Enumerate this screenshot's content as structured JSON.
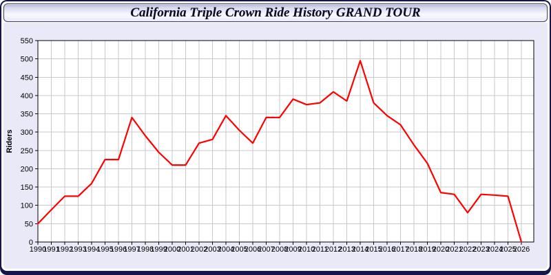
{
  "window": {
    "title": "California Triple Crown Ride History GRAND TOUR"
  },
  "colors": {
    "line": "#ff0000",
    "grid": "#c9c9c9",
    "axis": "#000000",
    "plot_background": "#ffffff",
    "panel_background": "#e9e9f8",
    "label_text": "#000000"
  },
  "chart_data": {
    "type": "line",
    "title": "California Triple Crown Ride History GRAND TOUR",
    "xlabel": "",
    "ylabel": "Riders",
    "x": [
      1990,
      1991,
      1992,
      1993,
      1994,
      1995,
      1996,
      1997,
      1998,
      1999,
      2000,
      2001,
      2002,
      2003,
      2004,
      2005,
      2006,
      2007,
      2008,
      2009,
      2010,
      2011,
      2012,
      2013,
      2014,
      2015,
      2016,
      2017,
      2018,
      2019,
      2020,
      2021,
      2022,
      2023,
      2024,
      2025,
      2026
    ],
    "series": [
      {
        "name": "Riders",
        "color": "#ff0000",
        "values": [
          50,
          88,
          125,
          125,
          160,
          225,
          225,
          340,
          290,
          245,
          210,
          210,
          270,
          280,
          345,
          305,
          270,
          340,
          340,
          390,
          375,
          380,
          410,
          385,
          495,
          380,
          345,
          320,
          265,
          215,
          135,
          130,
          80,
          130,
          128,
          125,
          0
        ]
      }
    ],
    "ylim": [
      0,
      550
    ],
    "ytick_step": 50,
    "grid": true,
    "legend_position": "none"
  }
}
